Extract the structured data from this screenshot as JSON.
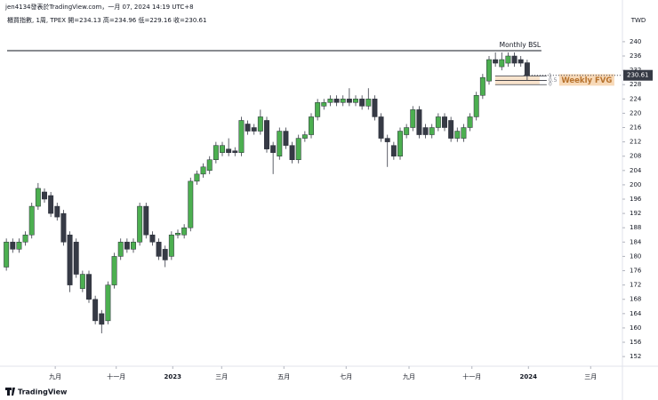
{
  "chart_data": {
    "type": "candlestick",
    "title": "jen4134發表於TradingView.com，一月 07, 2024 14:19 UTC+8",
    "subtitle": "櫃買指數, 1周, TPEX  開=234.13  高=234.96  低=229.16  收=230.61",
    "currency": "TWD",
    "watermark": "TradingView",
    "up_color": "#4caf50",
    "down_color": "#363a45",
    "open": [
      177,
      184,
      182,
      184,
      186,
      194,
      198,
      197,
      194,
      192,
      186,
      184,
      171,
      175,
      168,
      164,
      162,
      172,
      180,
      184,
      182,
      184,
      194,
      186,
      184,
      182,
      180,
      186,
      186,
      188,
      201,
      203,
      204,
      207,
      209,
      210,
      209.5,
      209,
      217,
      216,
      215,
      218,
      211,
      208,
      215,
      211,
      207,
      213,
      214,
      219,
      222,
      223,
      224,
      223,
      224,
      223,
      224,
      222,
      224,
      219,
      213,
      211,
      208,
      214,
      216,
      221,
      216,
      214,
      216,
      219,
      218,
      213,
      213,
      216,
      219,
      225,
      229,
      235,
      233,
      234,
      236,
      235,
      234.13
    ],
    "high": [
      185,
      185,
      185,
      187,
      195,
      200.5,
      199,
      198,
      195,
      193,
      187,
      185,
      176,
      176,
      169,
      165,
      173,
      181,
      185,
      185,
      185,
      195,
      195,
      187,
      185,
      183,
      187,
      187.5,
      189,
      202,
      204,
      206,
      208,
      212,
      212,
      213,
      210.5,
      219,
      218,
      217,
      221,
      219,
      212,
      216,
      216,
      212,
      214,
      215,
      220,
      224,
      224,
      225,
      225,
      225,
      227,
      225,
      225,
      227,
      225,
      220,
      214,
      212,
      216,
      217,
      222,
      222,
      217,
      217,
      220,
      220,
      219,
      216,
      217,
      220,
      226,
      231,
      236,
      237,
      237,
      237,
      237,
      236,
      234.96
    ],
    "low": [
      176,
      181,
      181,
      183,
      185,
      193,
      195,
      191,
      190,
      183,
      170,
      174,
      170,
      167,
      161,
      158.5,
      161,
      171,
      179,
      181,
      181,
      183,
      185,
      183,
      179,
      177,
      179,
      185,
      185,
      187,
      200,
      202,
      203,
      206,
      208,
      208,
      208,
      208,
      214,
      214,
      214,
      209,
      203,
      207,
      210,
      206,
      206,
      212,
      213,
      218,
      221,
      222,
      222,
      222,
      222,
      222,
      221,
      221,
      218,
      212,
      205,
      207,
      207,
      213,
      215,
      213,
      213,
      213,
      215,
      215,
      212,
      212,
      212,
      215,
      218,
      224,
      228,
      233,
      232,
      233,
      233,
      233,
      229.16
    ],
    "close": [
      184,
      182,
      184,
      186,
      194,
      199,
      196,
      192,
      191,
      184,
      172,
      175,
      175,
      168,
      162,
      161,
      172,
      180,
      184,
      182,
      184,
      194,
      186,
      184,
      180,
      179,
      186,
      186.5,
      188,
      201,
      203,
      205,
      207,
      211,
      211,
      209,
      209,
      218,
      215,
      215,
      219,
      210,
      209,
      215,
      211,
      207,
      213,
      214,
      219,
      223,
      223,
      224,
      223,
      224,
      223,
      224,
      222,
      224,
      219,
      213,
      212,
      208,
      215,
      216,
      221,
      214,
      214,
      216,
      219,
      216,
      213,
      215,
      216,
      219,
      225,
      230,
      235,
      234,
      235,
      236,
      234,
      234,
      230.61
    ],
    "xlim": [
      -1,
      97
    ],
    "xticks": [
      {
        "value": 7.7,
        "label": "九月"
      },
      {
        "value": 17.3,
        "label": "十一月"
      },
      {
        "value": 26.2,
        "label": "2023"
      },
      {
        "value": 33.9,
        "label": "三月"
      },
      {
        "value": 43.7,
        "label": "五月"
      },
      {
        "value": 53.5,
        "label": "七月"
      },
      {
        "value": 63.4,
        "label": "九月"
      },
      {
        "value": 73.3,
        "label": "十一月"
      },
      {
        "value": 82.2,
        "label": "2024"
      },
      {
        "value": 92,
        "label": "三月"
      }
    ],
    "ylim": [
      149.3,
      244.2
    ],
    "yticks": [
      152,
      156,
      160,
      164,
      168,
      172,
      176,
      180,
      184,
      188,
      192,
      196,
      200,
      204,
      208,
      212,
      216,
      220,
      224,
      228,
      232,
      236,
      240
    ],
    "bsl": {
      "text": "Monthly BSL",
      "value": 237.5
    },
    "fvg": {
      "text": "Weekly FVG",
      "low": 228,
      "high": 230.4,
      "levels": [
        1,
        0.5,
        0
      ]
    }
  }
}
